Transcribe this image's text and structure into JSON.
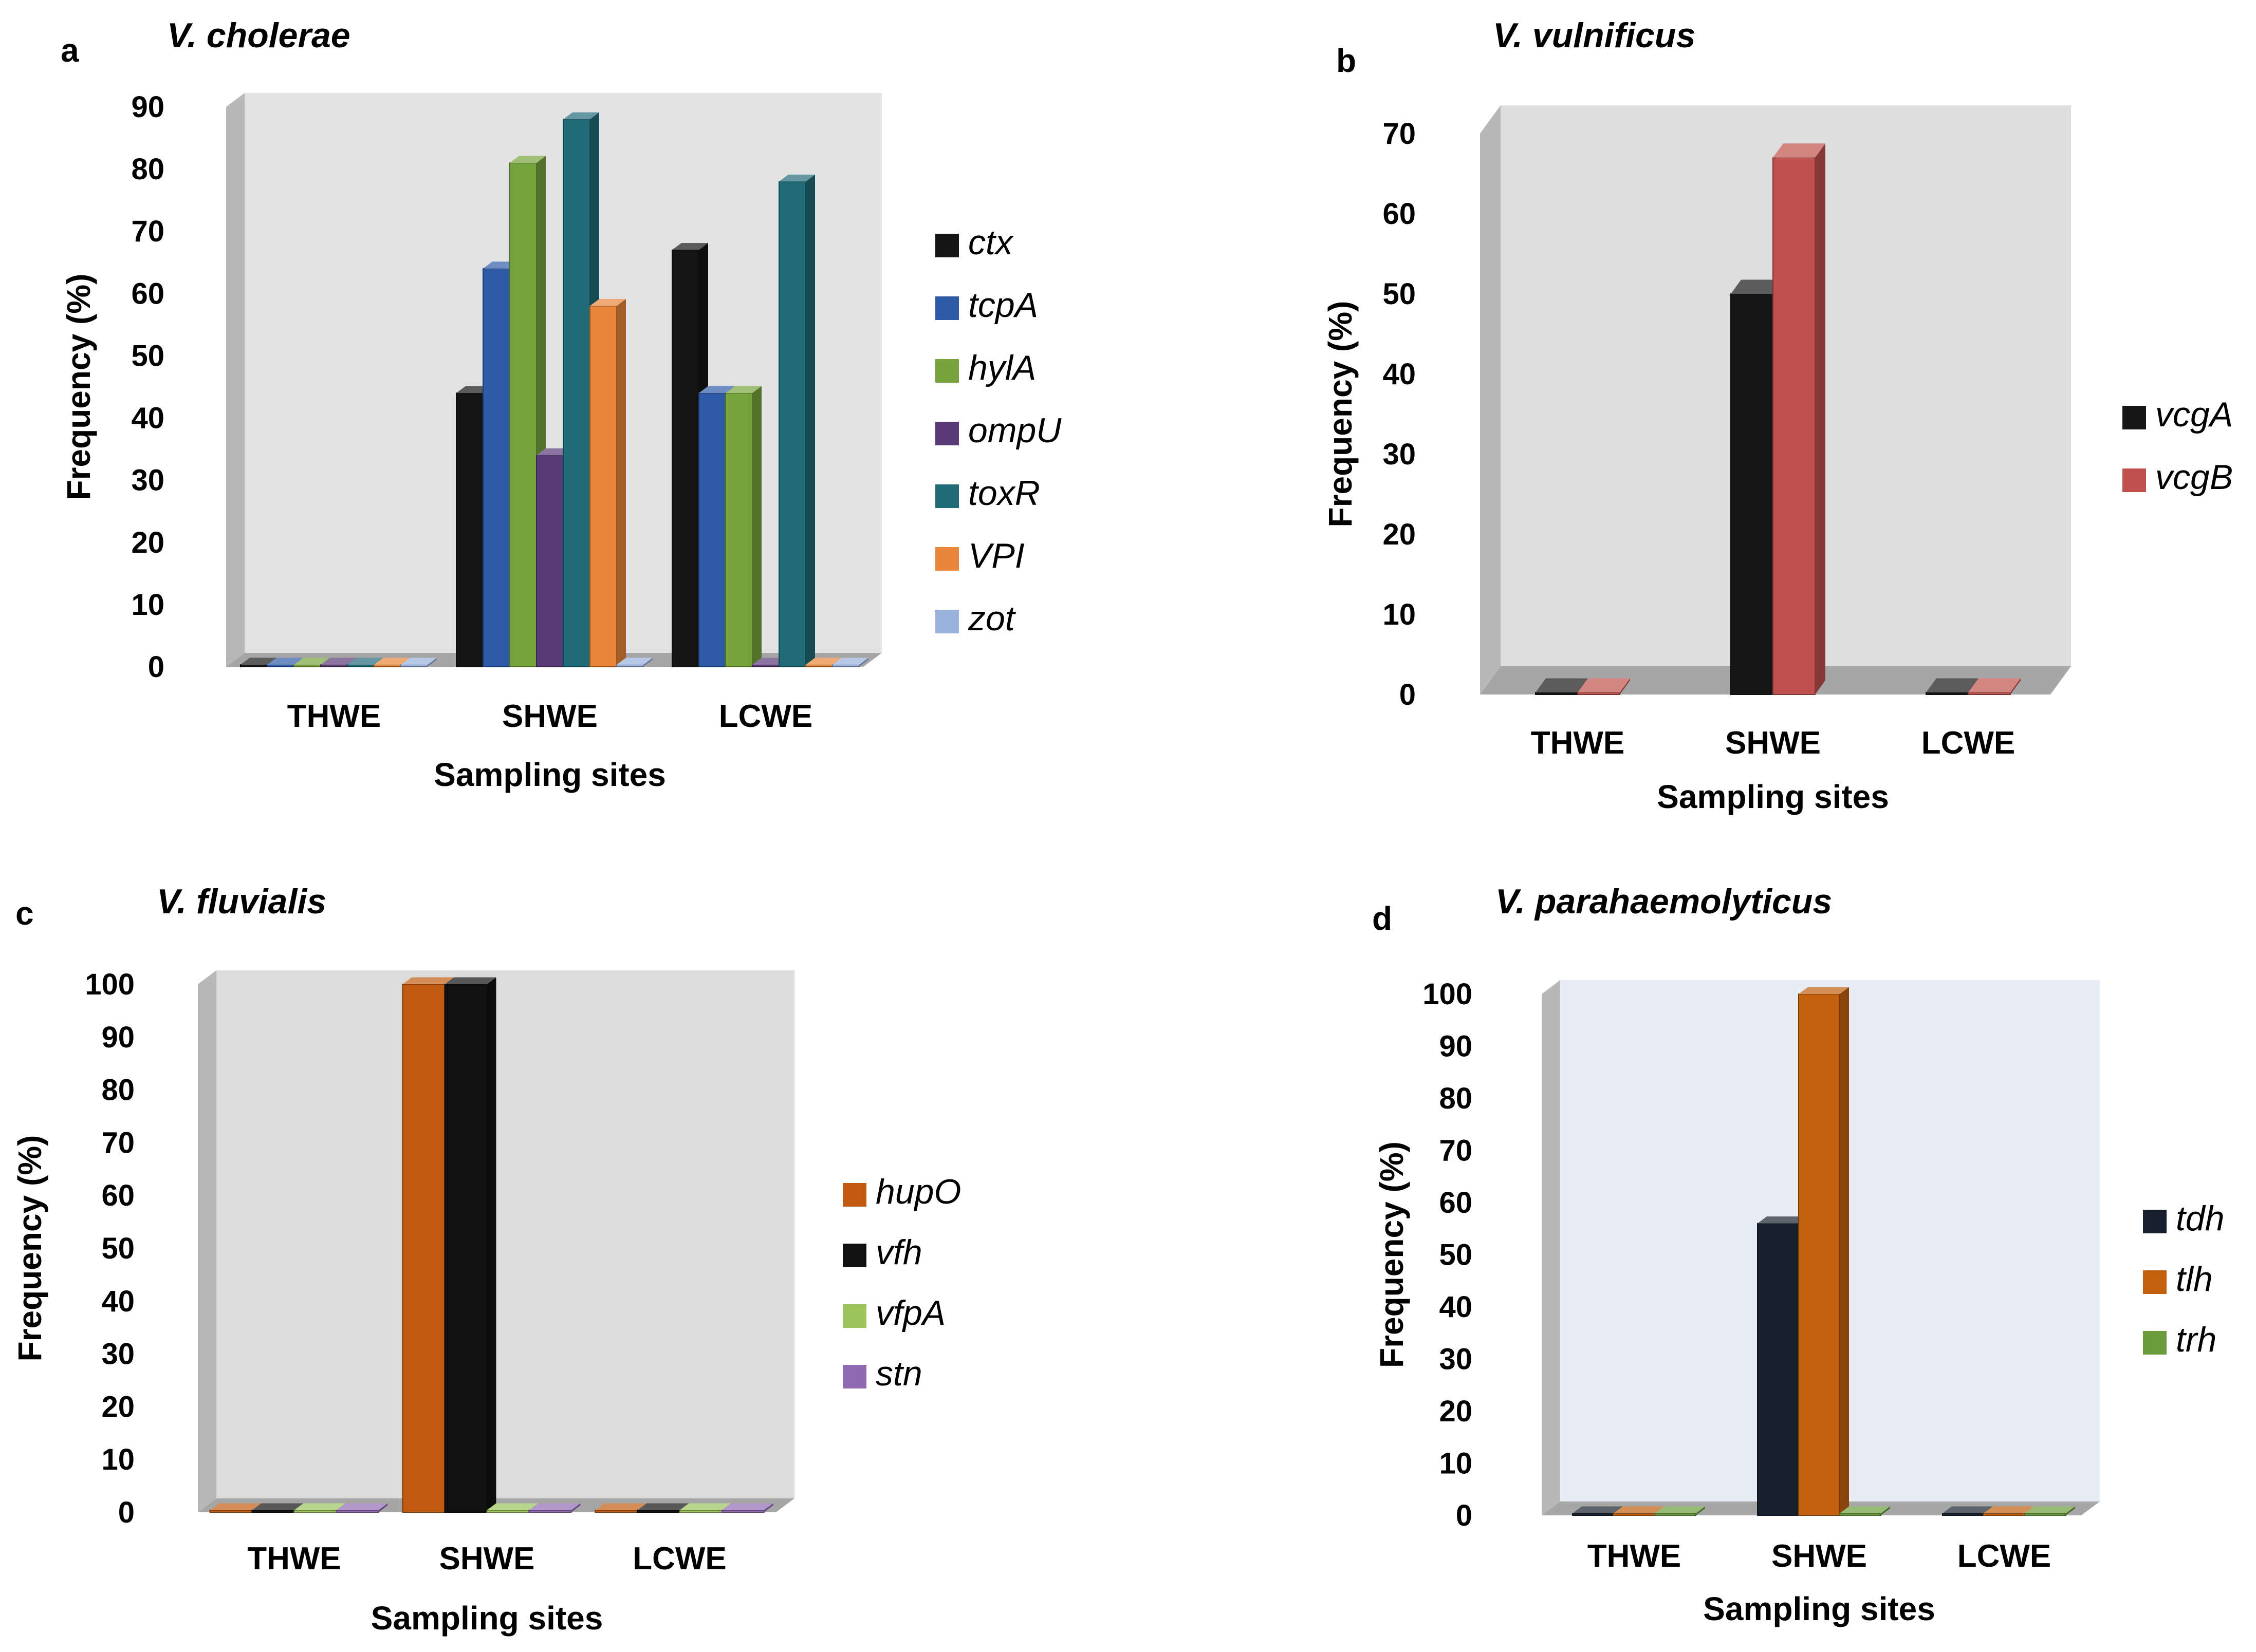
{
  "figure": {
    "colors": {
      "ctx": "#141414",
      "tcpA": "#2f5aa8",
      "hylA": "#77a33c",
      "ompU": "#5a3b78",
      "toxR": "#206b78",
      "VPI": "#e8853a",
      "zot": "#9ab1dd",
      "vcgA": "#161616",
      "vcgB": "#c0504d",
      "hupO": "#c15b12",
      "vfh": "#111111",
      "vfpA": "#9bc45a",
      "stn": "#8f6ab3",
      "tdh": "#17212d",
      "tlh": "#c3600f",
      "trh": "#6a9c3c"
    }
  },
  "chart_data": [
    {
      "panel": "a",
      "title": "V. cholerae",
      "type": "bar",
      "categories": [
        "THWE",
        "SHWE",
        "LCWE"
      ],
      "xlabel": "Sampling sites",
      "ylabel": "Frequency (%)",
      "ylim": [
        0,
        90
      ],
      "yticks": [
        0,
        10,
        20,
        30,
        40,
        50,
        60,
        70,
        80,
        90
      ],
      "background": "#e3e3e3",
      "series": [
        {
          "name": "ctx",
          "values": [
            0,
            44,
            67
          ]
        },
        {
          "name": "tcpA",
          "values": [
            0,
            64,
            44
          ]
        },
        {
          "name": "hylA",
          "values": [
            0,
            81,
            44
          ]
        },
        {
          "name": "ompU",
          "values": [
            0,
            34,
            0
          ]
        },
        {
          "name": "toxR",
          "values": [
            0,
            88,
            78
          ]
        },
        {
          "name": "VPI",
          "values": [
            0,
            58,
            0
          ]
        },
        {
          "name": "zot",
          "values": [
            0,
            0,
            0
          ]
        }
      ]
    },
    {
      "panel": "b",
      "title": "V. vulnificus",
      "type": "bar",
      "categories": [
        "THWE",
        "SHWE",
        "LCWE"
      ],
      "xlabel": "Sampling sites",
      "ylabel": "Frequency (%)",
      "ylim": [
        0,
        70
      ],
      "yticks": [
        0,
        10,
        20,
        30,
        40,
        50,
        60,
        70
      ],
      "background": "#dedede",
      "series": [
        {
          "name": "vcgA",
          "values": [
            0,
            50,
            0
          ]
        },
        {
          "name": "vcgB",
          "values": [
            0,
            67,
            0
          ]
        }
      ]
    },
    {
      "panel": "c",
      "title": "V. fluvialis",
      "type": "bar",
      "categories": [
        "THWE",
        "SHWE",
        "LCWE"
      ],
      "xlabel": "Sampling sites",
      "ylabel": "Frequency (%)",
      "ylim": [
        0,
        100
      ],
      "yticks": [
        0,
        10,
        20,
        30,
        40,
        50,
        60,
        70,
        80,
        90,
        100
      ],
      "background": "#dcdcdc",
      "series": [
        {
          "name": "hupO",
          "values": [
            0,
            100,
            0
          ]
        },
        {
          "name": "vfh",
          "values": [
            0,
            100,
            0
          ]
        },
        {
          "name": "vfpA",
          "values": [
            0,
            0,
            0
          ]
        },
        {
          "name": "stn",
          "values": [
            0,
            0,
            0
          ]
        }
      ]
    },
    {
      "panel": "d",
      "title": "V. parahaemolyticus",
      "type": "bar",
      "categories": [
        "THWE",
        "SHWE",
        "LCWE"
      ],
      "xlabel": "Sampling sites",
      "ylabel": "Frequency (%)",
      "ylim": [
        0,
        100
      ],
      "yticks": [
        0,
        10,
        20,
        30,
        40,
        50,
        60,
        70,
        80,
        90,
        100
      ],
      "background": "#e7edf7",
      "series": [
        {
          "name": "tdh",
          "values": [
            0,
            56,
            0
          ]
        },
        {
          "name": "tlh",
          "values": [
            0,
            100,
            0
          ]
        },
        {
          "name": "trh",
          "values": [
            0,
            0,
            0
          ]
        }
      ]
    }
  ]
}
